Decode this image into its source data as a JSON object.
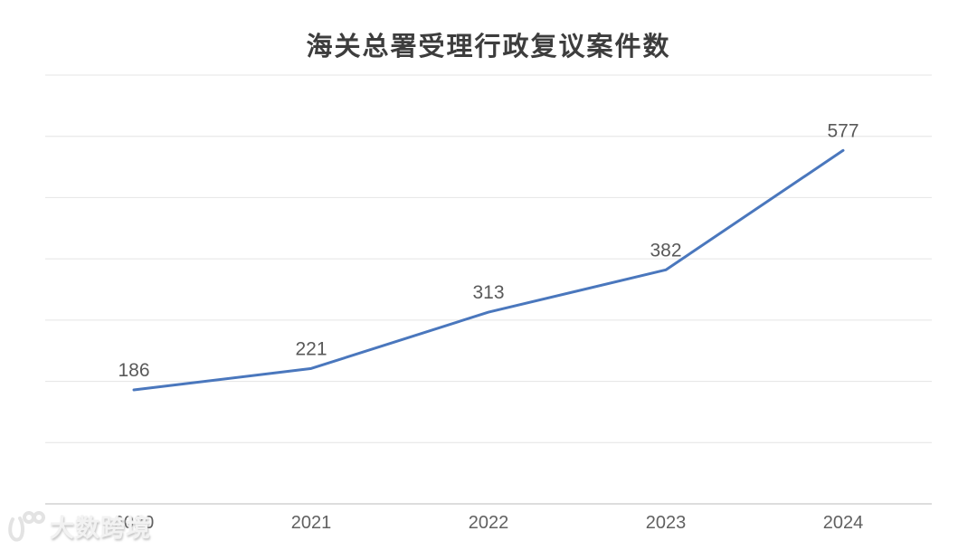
{
  "title": "海关总署受理行政复议案件数",
  "watermark": {
    "label": "大数跨境",
    "logo": "dashu-kuajing-logo"
  },
  "colors": {
    "line": "#4a77bd",
    "gridline": "#e4e4e4",
    "axis_line": "#d2d2d2",
    "tick_label": "#616161",
    "data_label": "#595959",
    "title": "#3d3d3d"
  },
  "chart_data": {
    "type": "line",
    "title": "海关总署受理行政复议案件数",
    "categories": [
      "2020",
      "2021",
      "2022",
      "2023",
      "2024"
    ],
    "series": [
      {
        "name": "受理行政复议案件数",
        "values": [
          186,
          221,
          313,
          382,
          577
        ]
      }
    ],
    "data_labels": [
      186,
      221,
      313,
      382,
      577
    ],
    "xlabel": "",
    "ylabel": "",
    "ylim": [
      0,
      700
    ],
    "grid_step": 100,
    "grid": true,
    "legend": false,
    "markers": false,
    "y_axis_labels_visible": false
  }
}
